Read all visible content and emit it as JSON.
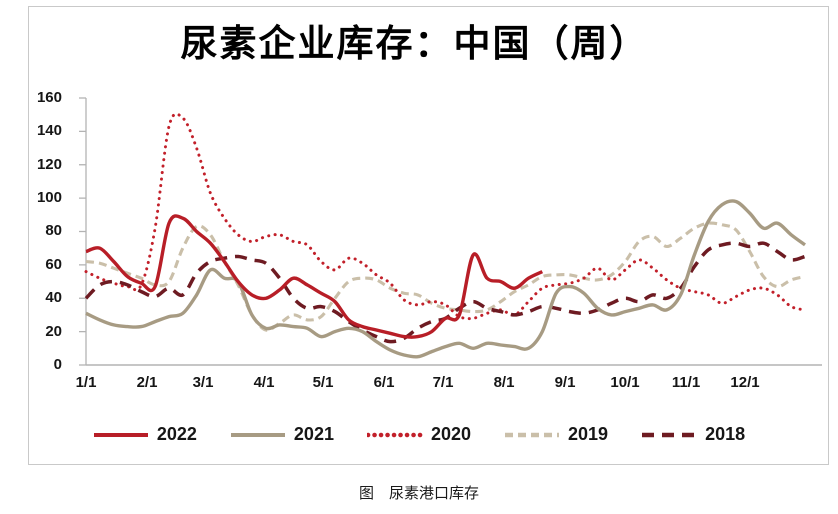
{
  "title": "尿素企业库存：中国（周）",
  "caption": "图　尿素港口库存",
  "chart_data": {
    "type": "line",
    "title": "尿素企业库存：中国（周）",
    "xlabel": "",
    "ylabel": "",
    "x_unit": "weeks, Jan 1 – Dec 31",
    "x_ticks": [
      "1/1",
      "2/1",
      "3/1",
      "4/1",
      "5/1",
      "6/1",
      "7/1",
      "8/1",
      "9/1",
      "10/1",
      "11/1",
      "12/1"
    ],
    "y_ticks": [
      "160",
      "140",
      "120",
      "100",
      "80",
      "60",
      "40",
      "20",
      "0"
    ],
    "ylim": [
      0,
      160
    ],
    "grid": false,
    "legend_position": "bottom",
    "axis_color": "#b3b3b3",
    "series": [
      {
        "name": "2022",
        "color": "#b81e27",
        "style": "solid",
        "width": 3.4,
        "dash": "",
        "values": [
          68,
          70,
          62,
          53,
          49,
          47,
          85,
          88,
          80,
          73,
          62,
          50,
          42,
          40,
          45,
          52,
          48,
          43,
          38,
          27,
          23,
          21,
          19,
          17,
          17,
          20,
          28,
          30,
          66,
          52,
          50,
          46,
          52,
          56
        ]
      },
      {
        "name": "2021",
        "color": "#a79b83",
        "style": "solid",
        "width": 3.4,
        "dash": "",
        "values": [
          31,
          27,
          24,
          23,
          23,
          26,
          29,
          31,
          42,
          57,
          52,
          50,
          30,
          22,
          24,
          23,
          22,
          17,
          20,
          22,
          20,
          14,
          9,
          6,
          5,
          8,
          11,
          13,
          10,
          13,
          12,
          11,
          10,
          20,
          43,
          47,
          43,
          34,
          30,
          32,
          34,
          36,
          33,
          42,
          66,
          86,
          96,
          98,
          91,
          82,
          85,
          78,
          72
        ]
      },
      {
        "name": "2020",
        "color": "#c2202a",
        "style": "dotted",
        "width": 3,
        "dash": "0.1 6.4",
        "values": [
          56,
          52,
          49,
          47,
          48,
          82,
          143,
          148,
          130,
          103,
          88,
          78,
          74,
          77,
          78,
          74,
          72,
          62,
          57,
          64,
          61,
          54,
          49,
          39,
          36,
          38,
          36,
          29,
          28,
          31,
          33,
          30,
          38,
          46,
          48,
          49,
          52,
          58,
          51,
          57,
          63,
          58,
          51,
          46,
          44,
          42,
          37,
          41,
          45,
          46,
          42,
          35,
          33
        ]
      },
      {
        "name": "2019",
        "color": "#cabfa9",
        "style": "dashed",
        "width": 3.1,
        "dash": "8 5",
        "values": [
          62,
          61,
          58,
          55,
          52,
          48,
          50,
          70,
          83,
          78,
          62,
          48,
          30,
          21,
          25,
          30,
          27,
          29,
          40,
          50,
          52,
          51,
          46,
          43,
          42,
          37,
          34,
          33,
          32,
          33,
          38,
          44,
          48,
          53,
          54,
          54,
          52,
          51,
          54,
          62,
          74,
          77,
          71,
          76,
          82,
          85,
          84,
          81,
          68,
          53,
          47,
          51,
          53
        ]
      },
      {
        "name": "2018",
        "color": "#6e1b22",
        "style": "dashed-long",
        "width": 3.5,
        "dash": "12 8",
        "values": [
          40,
          48,
          50,
          48,
          44,
          41,
          46,
          42,
          55,
          62,
          64,
          65,
          63,
          61,
          52,
          40,
          34,
          35,
          32,
          26,
          21,
          17,
          14,
          16,
          22,
          26,
          28,
          34,
          38,
          34,
          32,
          30,
          32,
          35,
          34,
          32,
          31,
          33,
          37,
          40,
          38,
          42,
          40,
          46,
          59,
          69,
          72,
          73,
          71,
          73,
          68,
          63,
          65
        ]
      }
    ]
  }
}
